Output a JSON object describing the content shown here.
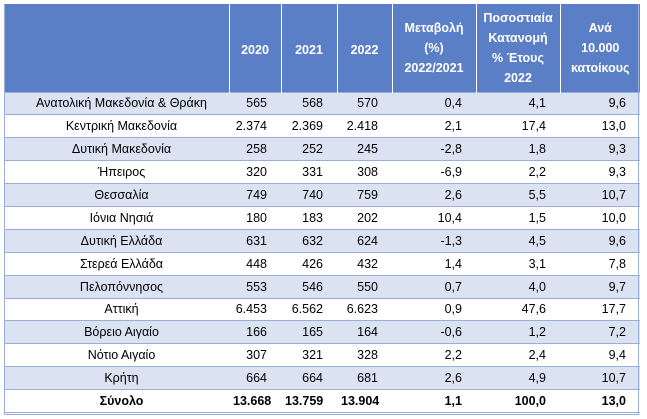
{
  "table": {
    "headers": {
      "region": "",
      "y2020": "2020",
      "y2021": "2021",
      "y2022": "2022",
      "change": [
        "Μεταβολή",
        "(%)",
        "2022/2021"
      ],
      "share": [
        "Ποσοστιαία",
        "Κατανομή",
        "% Έτους",
        "2022"
      ],
      "per10000": [
        "Ανά",
        "10.000",
        "κατοίκους"
      ]
    },
    "rows": [
      {
        "region": "Ανατολική Μακεδονία & Θράκη",
        "y2020": "565",
        "y2021": "568",
        "y2022": "570",
        "change": "0,4",
        "share": "4,1",
        "per10000": "9,6"
      },
      {
        "region": "Κεντρική Μακεδονία",
        "y2020": "2.374",
        "y2021": "2.369",
        "y2022": "2.418",
        "change": "2,1",
        "share": "17,4",
        "per10000": "13,0"
      },
      {
        "region": "Δυτική Μακεδονία",
        "y2020": "258",
        "y2021": "252",
        "y2022": "245",
        "change": "-2,8",
        "share": "1,8",
        "per10000": "9,3"
      },
      {
        "region": "Ήπειρος",
        "y2020": "320",
        "y2021": "331",
        "y2022": "308",
        "change": "-6,9",
        "share": "2,2",
        "per10000": "9,3"
      },
      {
        "region": "Θεσσαλία",
        "y2020": "749",
        "y2021": "740",
        "y2022": "759",
        "change": "2,6",
        "share": "5,5",
        "per10000": "10,7"
      },
      {
        "region": "Ιόνια Νησιά",
        "y2020": "180",
        "y2021": "183",
        "y2022": "202",
        "change": "10,4",
        "share": "1,5",
        "per10000": "10,0"
      },
      {
        "region": "Δυτική Ελλάδα",
        "y2020": "631",
        "y2021": "632",
        "y2022": "624",
        "change": "-1,3",
        "share": "4,5",
        "per10000": "9,6"
      },
      {
        "region": "Στερεά Ελλάδα",
        "y2020": "448",
        "y2021": "426",
        "y2022": "432",
        "change": "1,4",
        "share": "3,1",
        "per10000": "7,8"
      },
      {
        "region": "Πελοπόννησος",
        "y2020": "553",
        "y2021": "546",
        "y2022": "550",
        "change": "0,7",
        "share": "4,0",
        "per10000": "9,7"
      },
      {
        "region": "Αττική",
        "y2020": "6.453",
        "y2021": "6.562",
        "y2022": "6.623",
        "change": "0,9",
        "share": "47,6",
        "per10000": "17,7"
      },
      {
        "region": "Βόρειο Αιγαίο",
        "y2020": "166",
        "y2021": "165",
        "y2022": "164",
        "change": "-0,6",
        "share": "1,2",
        "per10000": "7,2"
      },
      {
        "region": "Νότιο Αιγαίο",
        "y2020": "307",
        "y2021": "321",
        "y2022": "328",
        "change": "2,2",
        "share": "2,4",
        "per10000": "9,4"
      },
      {
        "region": "Κρήτη",
        "y2020": "664",
        "y2021": "664",
        "y2022": "681",
        "change": "2,6",
        "share": "4,9",
        "per10000": "10,7"
      }
    ],
    "total": {
      "region": "Σύνολο",
      "y2020": "13.668",
      "y2021": "13.759",
      "y2022": "13.904",
      "change": "1,1",
      "share": "100,0",
      "per10000": "13,0"
    }
  },
  "colors": {
    "header_bg": "#5b7fc7",
    "stripe_bg": "#dbe3f3",
    "border": "#9aafd8"
  }
}
